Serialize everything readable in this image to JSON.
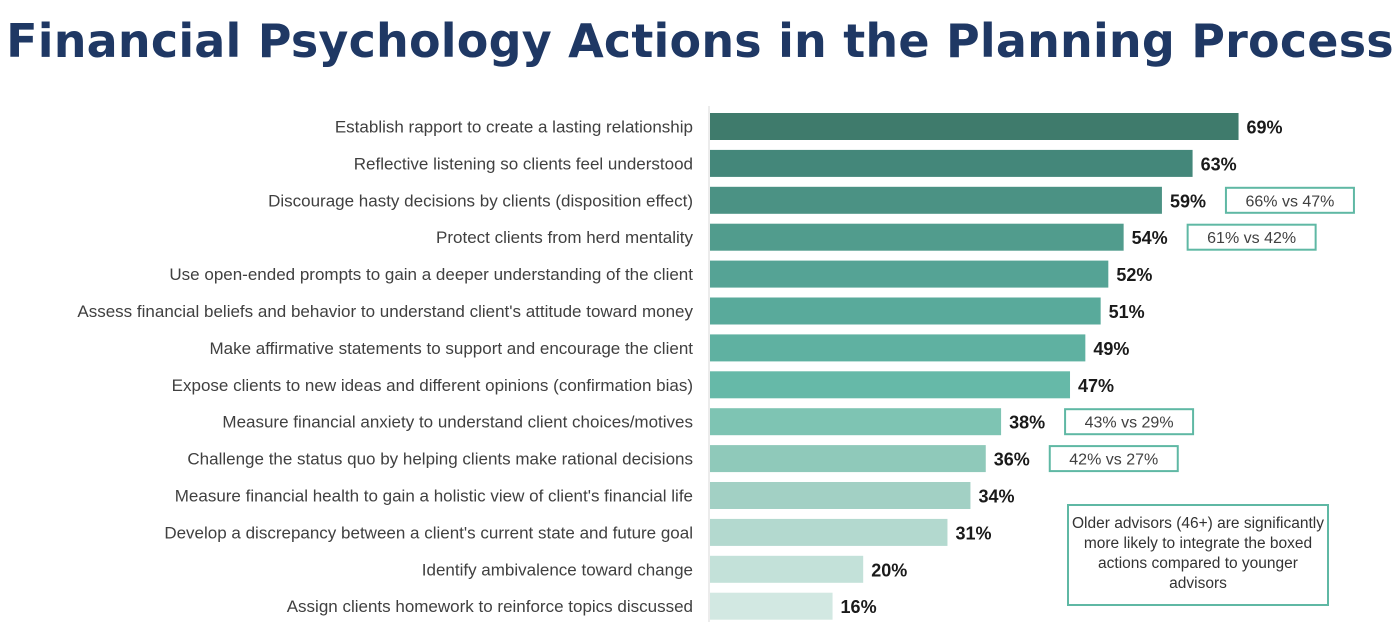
{
  "chart_data": {
    "type": "bar",
    "orientation": "horizontal",
    "title": "Financial Psychology Actions in the Planning Process",
    "categories": [
      "Establish rapport to create a lasting relationship",
      "Reflective listening so clients feel understood",
      "Discourage hasty decisions by clients (disposition effect)",
      "Protect clients from herd mentality",
      "Use open-ended prompts to gain a deeper understanding of the client",
      "Assess financial beliefs and behavior to understand client's attitude toward money",
      "Make affirmative statements to support and encourage the client",
      "Expose clients to new ideas and different opinions (confirmation bias)",
      "Measure financial anxiety to understand client choices/motives",
      "Challenge the status quo by helping clients make rational decisions",
      "Measure financial health to gain a holistic view of client's financial life",
      "Develop a discrepancy between a client's current state and future goal",
      "Identify ambivalence toward change",
      "Assign clients homework to reinforce topics discussed"
    ],
    "values": [
      69,
      63,
      59,
      54,
      52,
      51,
      49,
      47,
      38,
      36,
      34,
      31,
      20,
      16
    ],
    "value_labels": [
      "69%",
      "63%",
      "59%",
      "54%",
      "52%",
      "51%",
      "49%",
      "47%",
      "38%",
      "36%",
      "34%",
      "31%",
      "20%",
      "16%"
    ],
    "comparisons": [
      {
        "category_index": 2,
        "label": "66% vs 47%"
      },
      {
        "category_index": 3,
        "label": "61% vs 42%"
      },
      {
        "category_index": 8,
        "label": "43% vs 29%"
      },
      {
        "category_index": 9,
        "label": "42% vs 27%"
      }
    ],
    "xlim": [
      0,
      100
    ],
    "grid": false,
    "bar_colors": [
      "#3f7b6c",
      "#44877a",
      "#4b9284",
      "#519c8d",
      "#55a395",
      "#59aa9b",
      "#5fb1a1",
      "#66b9a8",
      "#7ec4b3",
      "#8fc9ba",
      "#a2d0c4",
      "#b3d9cf",
      "#c3e1d9",
      "#d2e8e2"
    ],
    "annotation": "Older advisors (46+) are significantly more likely to integrate the boxed actions compared to younger advisors"
  }
}
